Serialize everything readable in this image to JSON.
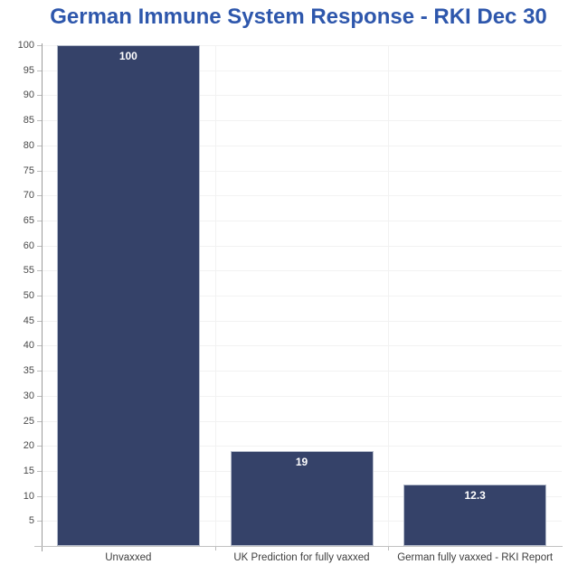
{
  "chart_data": {
    "type": "bar",
    "title": "German Immune System Response - RKI Dec 30",
    "categories": [
      "Unvaxxed",
      "UK Prediction for fully vaxxed",
      "German fully vaxxed - RKI Report"
    ],
    "values": [
      100,
      19,
      12.3
    ],
    "value_labels": [
      "100",
      "19",
      "12.3"
    ],
    "xlabel": "",
    "ylabel": "",
    "ylim": [
      0,
      100
    ],
    "yticks": [
      100,
      95,
      90,
      85,
      80,
      75,
      70,
      65,
      60,
      55,
      50,
      45,
      40,
      35,
      30,
      25,
      20,
      15,
      10,
      5
    ],
    "grid": true,
    "legend": "none",
    "colors": {
      "bar_fill": "#354269",
      "bar_border": "#b6bdcc",
      "title": "#2e57ac",
      "gridline": "#f2f2f2",
      "y_axis_line": "#9b9b9b",
      "x_axis_line": "#c2c2c2",
      "tick_mark": "#bcbcbc",
      "tick_label": "#4a4a4a",
      "category_label": "#3d3d3d",
      "value_label": "#ffffff"
    }
  }
}
